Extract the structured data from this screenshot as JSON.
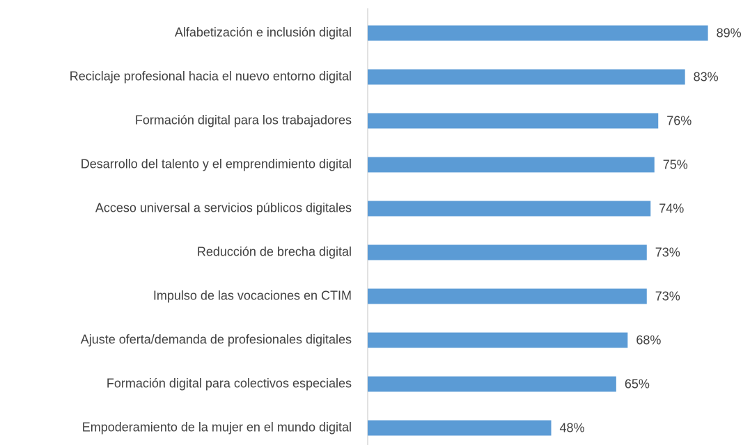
{
  "chart_data": {
    "type": "barh",
    "categories": [
      "Alfabetización e inclusión digital",
      "Reciclaje profesional hacia el nuevo entorno digital",
      "Formación digital para los trabajadores",
      "Desarrollo del talento y el emprendimiento digital",
      "Acceso universal a servicios públicos digitales",
      "Reducción de brecha digital",
      "Impulso de las vocaciones en CTIM",
      "Ajuste oferta/demanda de profesionales digitales",
      "Formación digital para colectivos especiales",
      "Empoderamiento de la mujer en el mundo digital"
    ],
    "values": [
      89,
      83,
      76,
      75,
      74,
      73,
      73,
      68,
      65,
      48
    ],
    "value_labels": [
      "89%",
      "83%",
      "76%",
      "75%",
      "74%",
      "73%",
      "73%",
      "68%",
      "65%",
      "48%"
    ],
    "color": "#5b9bd5",
    "xlim": [
      0,
      100
    ]
  }
}
